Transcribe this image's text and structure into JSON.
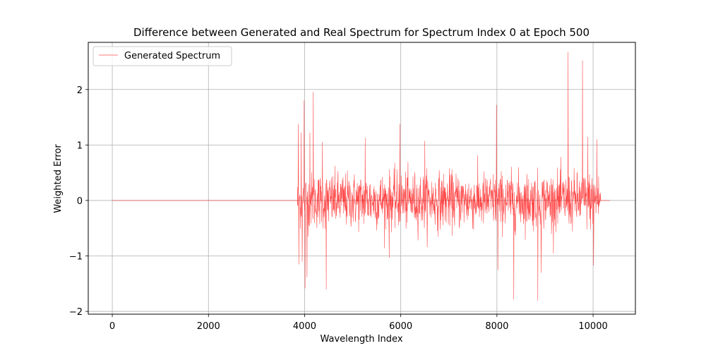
{
  "chart_data": {
    "type": "line",
    "title": "Difference between Generated and Real Spectrum for Spectrum Index 0 at Epoch 500",
    "xlabel": "Wavelength Index",
    "ylabel": "Weighted Error",
    "xlim": [
      -500,
      10880
    ],
    "ylim": [
      -2.05,
      2.85
    ],
    "xticks": [
      0,
      2000,
      4000,
      6000,
      8000,
      10000
    ],
    "yticks": [
      -2,
      -1,
      0,
      1,
      2
    ],
    "xtick_labels": [
      "0",
      "2000",
      "4000",
      "6000",
      "8000",
      "10000"
    ],
    "ytick_labels": [
      "−2",
      "−1",
      "0",
      "1",
      "2"
    ],
    "grid": true,
    "legend_position": "upper-left",
    "series": [
      {
        "name": "Generated Spectrum",
        "color": "#ff0000",
        "opacity": 0.7,
        "x_range": [
          0,
          10350
        ],
        "flat_until": 3850,
        "noisy_from": 3850,
        "noisy_until": 10150,
        "typical_amplitude": 0.45,
        "spikes": [
          {
            "x": 3870,
            "y": 1.38
          },
          {
            "x": 3880,
            "y": -1.15
          },
          {
            "x": 3930,
            "y": 1.22
          },
          {
            "x": 3950,
            "y": -1.1
          },
          {
            "x": 3990,
            "y": 1.8
          },
          {
            "x": 4010,
            "y": -1.58
          },
          {
            "x": 4050,
            "y": -1.38
          },
          {
            "x": 4110,
            "y": 1.22
          },
          {
            "x": 4180,
            "y": 1.95
          },
          {
            "x": 4450,
            "y": -1.6
          },
          {
            "x": 4370,
            "y": 1.05
          },
          {
            "x": 5260,
            "y": 1.13
          },
          {
            "x": 5760,
            "y": -1.03
          },
          {
            "x": 5980,
            "y": 1.38
          },
          {
            "x": 6500,
            "y": 1.07
          },
          {
            "x": 7990,
            "y": 1.72
          },
          {
            "x": 8020,
            "y": -1.25
          },
          {
            "x": 8350,
            "y": -1.78
          },
          {
            "x": 8850,
            "y": -1.8
          },
          {
            "x": 8920,
            "y": -1.3
          },
          {
            "x": 9480,
            "y": 2.67
          },
          {
            "x": 9780,
            "y": 2.52
          },
          {
            "x": 9890,
            "y": 1.14
          },
          {
            "x": 10010,
            "y": -1.17
          },
          {
            "x": 10080,
            "y": 1.1
          }
        ]
      }
    ]
  }
}
